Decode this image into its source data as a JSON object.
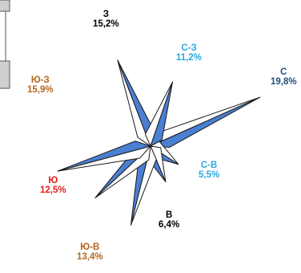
{
  "chart_data": {
    "type": "wind-rose",
    "directions": [
      {
        "name": "С",
        "value": "19,8%",
        "pct": 19.8,
        "color": "#1f4e79"
      },
      {
        "name": "С-В",
        "value": "5,5%",
        "pct": 5.5,
        "color": "#29a8e0"
      },
      {
        "name": "В",
        "value": "6,4%",
        "pct": 6.4,
        "color": "#000000"
      },
      {
        "name": "Ю-В",
        "value": "13,4%",
        "pct": 13.4,
        "color": "#b5651d"
      },
      {
        "name": "Ю",
        "value": "12,5%",
        "pct": 12.5,
        "color": "#e0201b"
      },
      {
        "name": "Ю-З",
        "value": "15,9%",
        "pct": 15.9,
        "color": "#b5651d"
      },
      {
        "name": "З",
        "value": "15,2%",
        "pct": 15.2,
        "color": "#000000"
      },
      {
        "name": "С-З",
        "value": "11,2%",
        "pct": 11.2,
        "color": "#29a8e0"
      }
    ],
    "colors": {
      "fill": "#4a7fd1",
      "light": "#ffffff",
      "stroke": "#1a1a1a"
    }
  }
}
